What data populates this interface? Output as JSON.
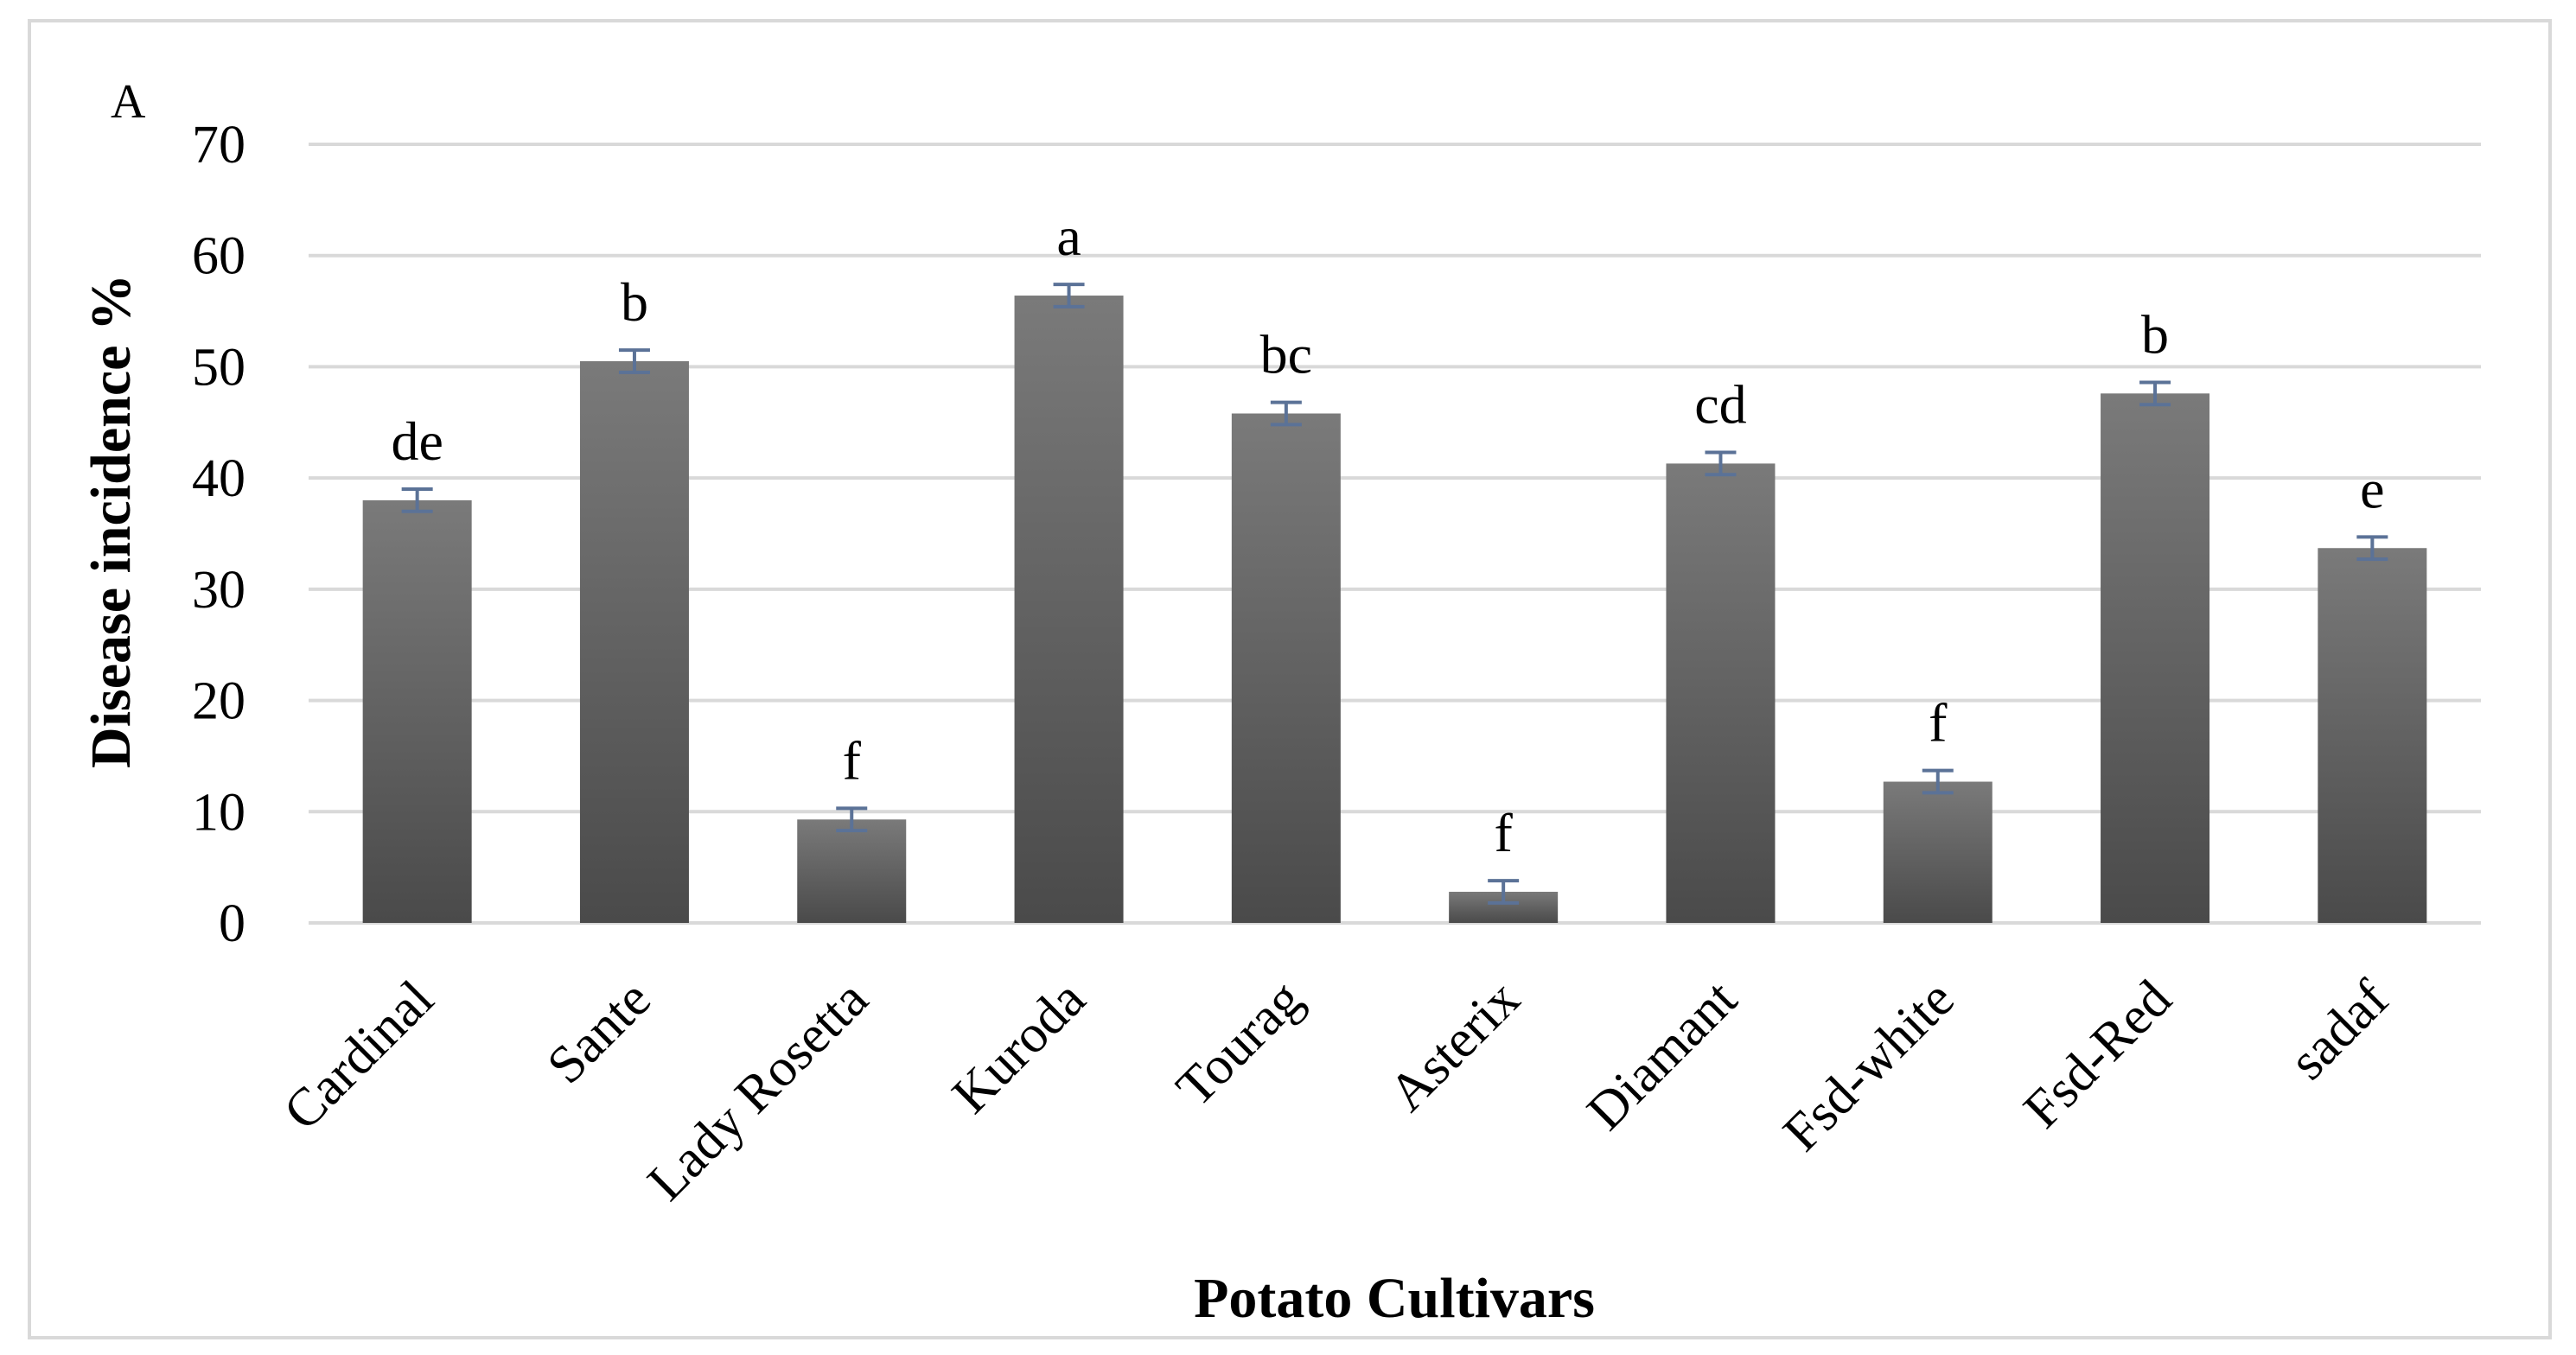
{
  "panel_label": "A",
  "colors": {
    "bar_top": "#7a7a7a",
    "bar_bottom": "#4a4a4a",
    "error_bar": "#5b7297",
    "grid": "#d9d9d9",
    "frame": "#d9d9d9"
  },
  "chart_data": {
    "type": "bar",
    "title": "",
    "xlabel": "Potato Cultivars",
    "ylabel": "Disease incidence %",
    "ylim": [
      0,
      70
    ],
    "yticks": [
      0,
      10,
      20,
      30,
      40,
      50,
      60,
      70
    ],
    "grid": true,
    "legend": "none",
    "categories": [
      "Cardinal",
      "Sante",
      "Lady Rosetta",
      "Kuroda",
      "Tourag",
      "Asterix",
      "Diamant",
      "Fsd-white",
      "Fsd-Red",
      "sadaf"
    ],
    "values": [
      38.0,
      50.5,
      9.3,
      56.4,
      45.8,
      2.8,
      41.3,
      12.7,
      47.6,
      33.7
    ],
    "errors": [
      1.0,
      1.0,
      1.0,
      1.0,
      1.0,
      1.0,
      1.0,
      1.0,
      1.0,
      1.0
    ],
    "significance_letters": [
      "de",
      "b",
      "f",
      "a",
      "bc",
      "f",
      "cd",
      "f",
      "b",
      "e"
    ]
  }
}
